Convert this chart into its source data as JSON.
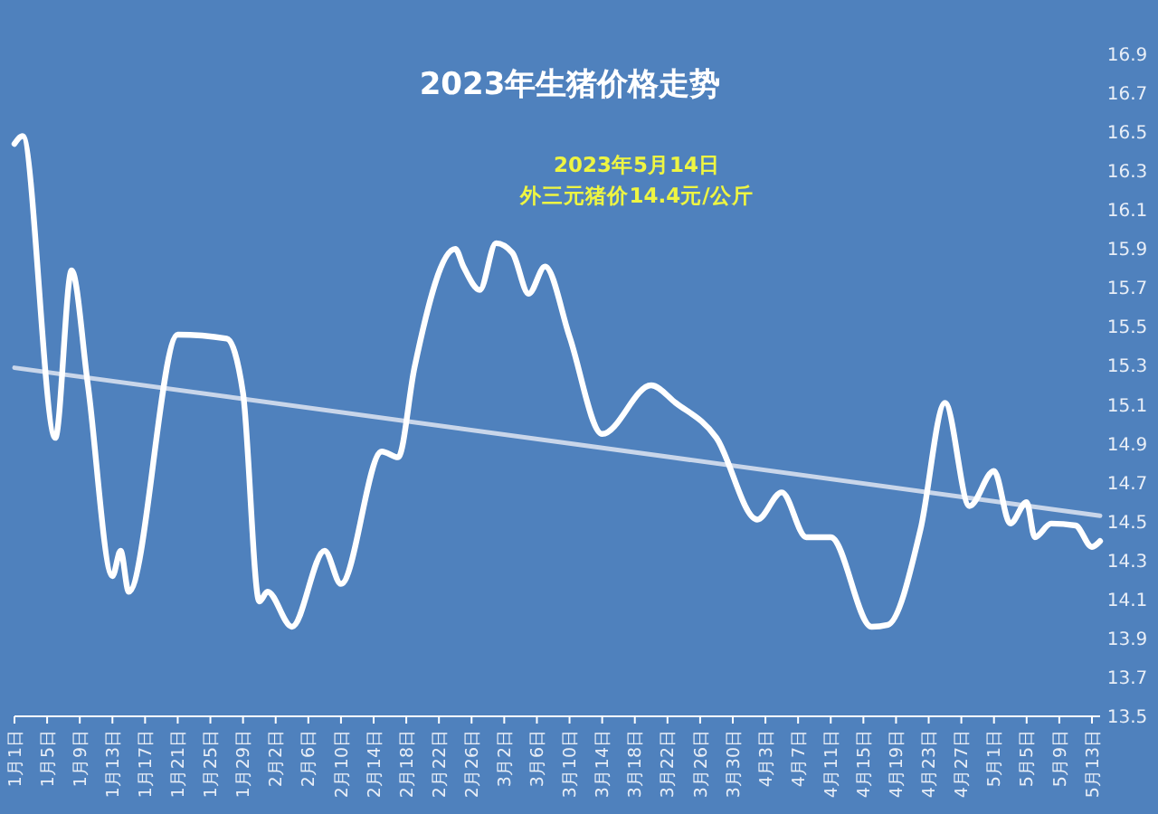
{
  "chart_data": {
    "type": "line",
    "title": "2023年生猪价格走势",
    "annotations": [
      "2023年5月14日",
      "外三元猪价14.4元/公斤"
    ],
    "x": [
      "2023-01-01",
      "2023-01-02",
      "2023-01-06",
      "2023-01-08",
      "2023-01-10",
      "2023-01-13",
      "2023-01-14",
      "2023-01-15",
      "2023-01-21",
      "2023-01-27",
      "2023-01-29",
      "2023-01-31",
      "2023-02-01",
      "2023-02-04",
      "2023-02-08",
      "2023-02-10",
      "2023-02-15",
      "2023-02-17",
      "2023-02-19",
      "2023-02-24",
      "2023-02-25",
      "2023-02-27",
      "2023-03-01",
      "2023-03-03",
      "2023-03-05",
      "2023-03-07",
      "2023-03-10",
      "2023-03-14",
      "2023-03-20",
      "2023-03-23",
      "2023-03-28",
      "2023-04-02",
      "2023-04-05",
      "2023-04-08",
      "2023-04-11",
      "2023-04-16",
      "2023-04-18",
      "2023-04-22",
      "2023-04-25",
      "2023-04-28",
      "2023-05-01",
      "2023-05-03",
      "2023-05-05",
      "2023-05-06",
      "2023-05-08",
      "2023-05-11",
      "2023-05-13",
      "2023-05-14"
    ],
    "series": [
      {
        "color": "#ffffff",
        "values": [
          16.44,
          16.48,
          14.93,
          15.79,
          15.2,
          14.22,
          14.35,
          14.14,
          15.46,
          15.44,
          15.16,
          14.09,
          14.14,
          13.96,
          14.35,
          14.18,
          14.86,
          14.83,
          15.29,
          15.9,
          15.81,
          15.69,
          15.93,
          15.88,
          15.67,
          15.81,
          15.45,
          14.95,
          15.2,
          15.11,
          14.93,
          14.51,
          14.65,
          14.42,
          14.42,
          13.96,
          13.97,
          14.46,
          15.11,
          14.58,
          14.76,
          14.49,
          14.6,
          14.42,
          14.49,
          14.48,
          14.37,
          14.4
        ]
      },
      {
        "type": "line",
        "color": "#c9d6ea",
        "x": [
          "2023-01-01",
          "2023-05-14"
        ],
        "values": [
          15.29,
          14.53
        ]
      }
    ],
    "xlim": [
      "2023-01-01",
      "2023-05-14"
    ],
    "xticks": [
      {
        "value": "2023-01-01",
        "label": "1月1日"
      },
      {
        "value": "2023-01-05",
        "label": "1月5日"
      },
      {
        "value": "2023-01-09",
        "label": "1月9日"
      },
      {
        "value": "2023-01-13",
        "label": "1月13日"
      },
      {
        "value": "2023-01-17",
        "label": "1月17日"
      },
      {
        "value": "2023-01-21",
        "label": "1月21日"
      },
      {
        "value": "2023-01-25",
        "label": "1月25日"
      },
      {
        "value": "2023-01-29",
        "label": "1月29日"
      },
      {
        "value": "2023-02-02",
        "label": "2月2日"
      },
      {
        "value": "2023-02-06",
        "label": "2月6日"
      },
      {
        "value": "2023-02-10",
        "label": "2月10日"
      },
      {
        "value": "2023-02-14",
        "label": "2月14日"
      },
      {
        "value": "2023-02-18",
        "label": "2月18日"
      },
      {
        "value": "2023-02-22",
        "label": "2月22日"
      },
      {
        "value": "2023-02-26",
        "label": "2月26日"
      },
      {
        "value": "2023-03-02",
        "label": "3月2日"
      },
      {
        "value": "2023-03-06",
        "label": "3月6日"
      },
      {
        "value": "2023-03-10",
        "label": "3月10日"
      },
      {
        "value": "2023-03-14",
        "label": "3月14日"
      },
      {
        "value": "2023-03-18",
        "label": "3月18日"
      },
      {
        "value": "2023-03-22",
        "label": "3月22日"
      },
      {
        "value": "2023-03-26",
        "label": "3月26日"
      },
      {
        "value": "2023-03-30",
        "label": "3月30日"
      },
      {
        "value": "2023-04-03",
        "label": "4月3日"
      },
      {
        "value": "2023-04-07",
        "label": "4月7日"
      },
      {
        "value": "2023-04-11",
        "label": "4月11日"
      },
      {
        "value": "2023-04-15",
        "label": "4月15日"
      },
      {
        "value": "2023-04-19",
        "label": "4月19日"
      },
      {
        "value": "2023-04-23",
        "label": "4月23日"
      },
      {
        "value": "2023-04-27",
        "label": "4月27日"
      },
      {
        "value": "2023-05-01",
        "label": "5月1日"
      },
      {
        "value": "2023-05-05",
        "label": "5月5日"
      },
      {
        "value": "2023-05-09",
        "label": "5月9日"
      },
      {
        "value": "2023-05-13",
        "label": "5月13日"
      }
    ],
    "ylim": [
      13.5,
      16.9
    ],
    "yticks": [
      13.5,
      13.7,
      13.9,
      14.1,
      14.3,
      14.5,
      14.7,
      14.9,
      15.1,
      15.3,
      15.5,
      15.7,
      15.9,
      16.1,
      16.3,
      16.5,
      16.7,
      16.9
    ],
    "grid": false,
    "marker": "none",
    "line_style": "solid"
  }
}
